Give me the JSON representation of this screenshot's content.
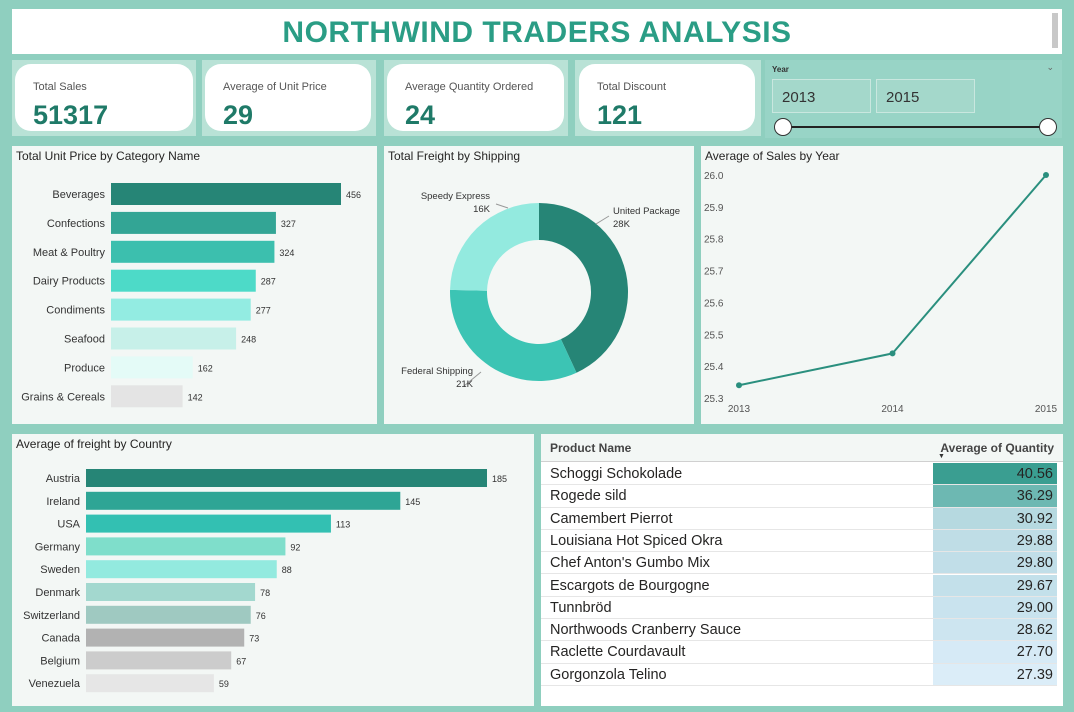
{
  "header": {
    "title": "NORTHWIND TRADERS ANALYSIS"
  },
  "kpis": [
    {
      "label": "Total Sales",
      "value": "51317"
    },
    {
      "label": "Average of Unit Price",
      "value": "29"
    },
    {
      "label": "Average Quantity Ordered",
      "value": "24"
    },
    {
      "label": "Total Discount",
      "value": "121"
    }
  ],
  "slicer": {
    "label": "Year",
    "start": "2013",
    "end": "2015"
  },
  "charts": {
    "category": {
      "title": "Total Unit Price by Category Name",
      "categories": [
        "Beverages",
        "Confections",
        "Meat & Poultry",
        "Dairy Products",
        "Condiments",
        "Seafood",
        "Produce",
        "Grains & Cereals"
      ],
      "values": [
        456,
        327,
        324,
        287,
        277,
        248,
        162,
        142
      ],
      "colors": [
        "#268576",
        "#33a595",
        "#3cbfae",
        "#4ddac8",
        "#93ece2",
        "#c7f0e9",
        "#e4fbf7",
        "#e4e4e4"
      ]
    },
    "shipping": {
      "title": "Total Freight by Shipping",
      "slices": [
        {
          "name": "United Package",
          "label": "28K",
          "value": 28,
          "color": "#268576"
        },
        {
          "name": "Federal Shipping",
          "label": "21K",
          "value": 21,
          "color": "#3cc4b4"
        },
        {
          "name": "Speedy Express",
          "label": "16K",
          "value": 16,
          "color": "#93eadf"
        }
      ]
    },
    "sales_year": {
      "title": "Average of Sales by Year",
      "x": [
        "2013",
        "2014",
        "2015"
      ],
      "y": [
        25.34,
        25.44,
        26.0
      ],
      "yticks": [
        "26.0",
        "25.9",
        "25.8",
        "25.7",
        "25.6",
        "25.5",
        "25.4",
        "25.3"
      ],
      "ylim": [
        25.3,
        26.0
      ],
      "color": "#2a8f7e"
    },
    "country": {
      "title": "Average of freight by Country",
      "categories": [
        "Austria",
        "Ireland",
        "USA",
        "Germany",
        "Sweden",
        "Denmark",
        "Switzerland",
        "Canada",
        "Belgium",
        "Venezuela"
      ],
      "values": [
        185,
        145,
        113,
        92,
        88,
        78,
        76,
        73,
        67,
        59
      ],
      "colors": [
        "#268576",
        "#2ea595",
        "#33c0b2",
        "#7fdecb",
        "#93eadf",
        "#a3d8cf",
        "#9fc9c1",
        "#b2b2b2",
        "#cccccc",
        "#e6e6e6"
      ]
    }
  },
  "table": {
    "col_name": "Product Name",
    "col_value": "Average of Quantity",
    "rows": [
      {
        "name": "Schoggi Schokolade",
        "value": "40.56",
        "color": "#3a9e91"
      },
      {
        "name": "Rogede sild",
        "value": "36.29",
        "color": "#6db8b2"
      },
      {
        "name": "Camembert Pierrot",
        "value": "30.92",
        "color": "#b6d9e0"
      },
      {
        "name": "Louisiana Hot Spiced Okra",
        "value": "29.88",
        "color": "#bfdde6"
      },
      {
        "name": "Chef Anton's Gumbo Mix",
        "value": "29.80",
        "color": "#c1dee8"
      },
      {
        "name": "Escargots de Bourgogne",
        "value": "29.67",
        "color": "#c3e0ea"
      },
      {
        "name": "Tunnbröd",
        "value": "29.00",
        "color": "#c9e3ee"
      },
      {
        "name": "Northwoods Cranberry Sauce",
        "value": "28.62",
        "color": "#cde5f0"
      },
      {
        "name": "Raclette Courdavault",
        "value": "27.70",
        "color": "#d6eaf6"
      },
      {
        "name": "Gorgonzola Telino",
        "value": "27.39",
        "color": "#dbedf8"
      }
    ]
  }
}
